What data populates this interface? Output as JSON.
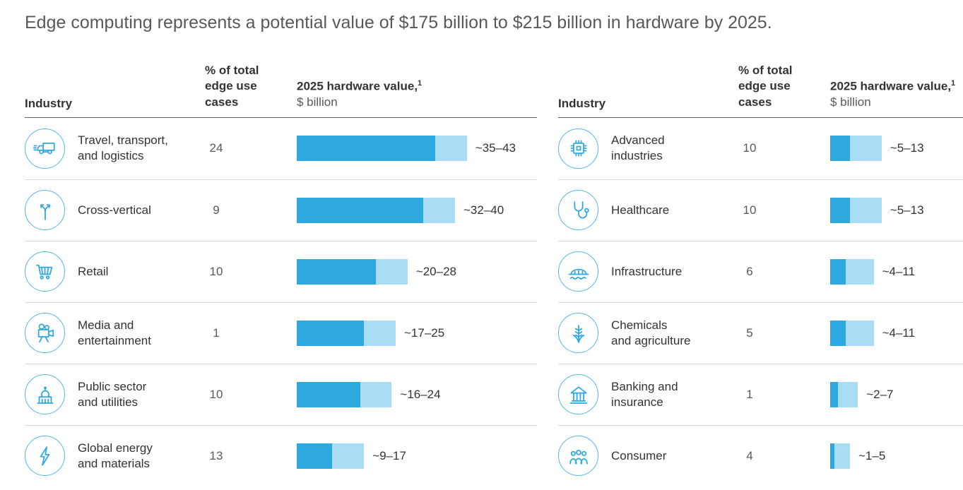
{
  "title": "Edge computing represents a potential value of $175 billion to $215 billion in hardware by 2025.",
  "columns": {
    "industry": "Industry",
    "pct": "% of total edge use cases",
    "value_title": "2025 hardware value,",
    "value_sup": "1",
    "value_unit": "$ billion"
  },
  "colors": {
    "bar_dark": "#2da9e0",
    "bar_light": "#a9dcf5",
    "icon_stroke": "#2fa9df",
    "circle_border": "#55b9e6"
  },
  "chart_data": {
    "type": "bar",
    "title": "Edge computing represents a potential value of $175 billion to $215 billion in hardware by 2025.",
    "categories": [
      "Travel, transport, and logistics",
      "Cross-vertical",
      "Retail",
      "Media and entertainment",
      "Public sector and utilities",
      "Global energy and materials",
      "Advanced industries",
      "Healthcare",
      "Infrastructure",
      "Chemicals and agriculture",
      "Banking and insurance",
      "Consumer"
    ],
    "series": [
      {
        "name": "% of total edge use cases",
        "values": [
          24,
          9,
          10,
          1,
          10,
          13,
          10,
          10,
          6,
          5,
          1,
          4
        ]
      },
      {
        "name": "2025 hardware value low, $ billion",
        "values": [
          35,
          32,
          20,
          17,
          16,
          9,
          5,
          5,
          4,
          4,
          2,
          1
        ]
      },
      {
        "name": "2025 hardware value high, $ billion",
        "values": [
          43,
          40,
          28,
          25,
          24,
          17,
          13,
          13,
          11,
          11,
          7,
          5
        ]
      }
    ],
    "value_labels": [
      "~35–43",
      "~32–40",
      "~20–28",
      "~17–25",
      "~16–24",
      "~9–17",
      "~5–13",
      "~5–13",
      "~4–11",
      "~4–11",
      "~2–7",
      "~1–5"
    ],
    "xlabel": "2025 hardware value, $ billion",
    "xlim": [
      0,
      45
    ],
    "grid": false,
    "legend_position": "none"
  },
  "tables": [
    {
      "rows": [
        {
          "icon": "truck-icon",
          "industry": "Travel, transport,\nand logistics",
          "pct": "24",
          "low": 35,
          "high": 43,
          "label": "~35–43"
        },
        {
          "icon": "branch-arrows-icon",
          "industry": "Cross-vertical",
          "pct": "9",
          "low": 32,
          "high": 40,
          "label": "~32–40"
        },
        {
          "icon": "shopping-cart-icon",
          "industry": "Retail",
          "pct": "10",
          "low": 20,
          "high": 28,
          "label": "~20–28"
        },
        {
          "icon": "movie-camera-icon",
          "industry": "Media and\nentertainment",
          "pct": "1",
          "low": 17,
          "high": 25,
          "label": "~17–25"
        },
        {
          "icon": "capitol-building-icon",
          "industry": "Public sector\nand utilities",
          "pct": "10",
          "low": 16,
          "high": 24,
          "label": "~16–24"
        },
        {
          "icon": "lightning-bolt-icon",
          "industry": "Global energy\nand materials",
          "pct": "13",
          "low": 9,
          "high": 17,
          "label": "~9–17"
        }
      ]
    },
    {
      "rows": [
        {
          "icon": "microchip-icon",
          "industry": "Advanced\nindustries",
          "pct": "10",
          "low": 5,
          "high": 13,
          "label": "~5–13"
        },
        {
          "icon": "stethoscope-icon",
          "industry": "Healthcare",
          "pct": "10",
          "low": 5,
          "high": 13,
          "label": "~5–13"
        },
        {
          "icon": "bridge-icon",
          "industry": "Infrastructure",
          "pct": "6",
          "low": 4,
          "high": 11,
          "label": "~4–11"
        },
        {
          "icon": "wheat-icon",
          "industry": "Chemicals\nand agriculture",
          "pct": "5",
          "low": 4,
          "high": 11,
          "label": "~4–11"
        },
        {
          "icon": "bank-icon",
          "industry": "Banking and\ninsurance",
          "pct": "1",
          "low": 2,
          "high": 7,
          "label": "~2–7"
        },
        {
          "icon": "people-icon",
          "industry": "Consumer",
          "pct": "4",
          "low": 1,
          "high": 5,
          "label": "~1–5"
        }
      ]
    }
  ]
}
